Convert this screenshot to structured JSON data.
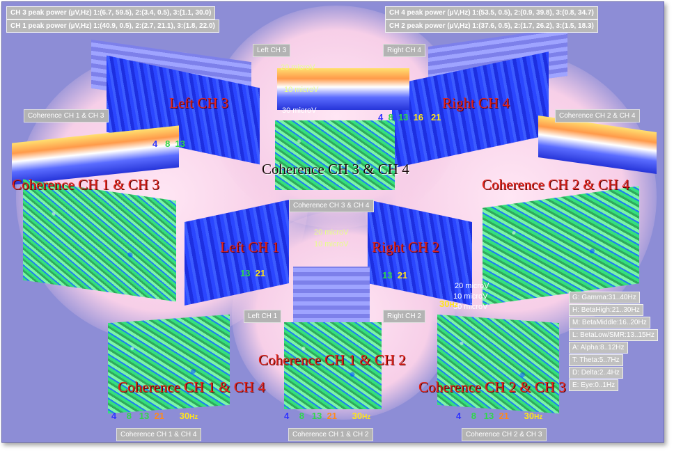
{
  "peak_power": {
    "ch3": "CH 3 peak power (µV,Hz) 1:(6.7, 59.5), 2:(3.4, 0.5), 3:(1.1, 30.0)",
    "ch1": "CH 1 peak power (µV,Hz) 1:(40.9, 0.5), 2:(2.7, 21.1), 3:(1.8, 22.0)",
    "ch4": "CH 4 peak power (µV,Hz) 1:(53.5, 0.5), 2:(0.9, 39.8), 3:(0.8, 34.7)",
    "ch2": "CH 2 peak power (µV,Hz) 1:(37.6, 0.5), 2:(1.7, 26.2), 3:(1.5, 18.3)"
  },
  "panel_labels": {
    "left_ch3": "Left CH 3",
    "right_ch4": "Right CH 4",
    "coh_13": "Coherence CH 1 & CH 3",
    "coh_24": "Coherence CH 2 & CH 4",
    "coh_34": "Coherence CH 3 & CH 4",
    "left_ch1": "Left CH 1",
    "right_ch2": "Right CH 2",
    "coh_14": "Coherence CH 1 & CH 4",
    "coh_12": "Coherence CH 1 & CH 2",
    "coh_23": "Coherence CH 2 & CH 3"
  },
  "big_titles": {
    "left_ch3": "Left CH 3",
    "right_ch4": "Right CH 4",
    "coh_34": "Coherence CH 3 & CH 4",
    "coh_13": "Coherence CH 1 & CH 3",
    "coh_24": "Coherence CH 2 & CH 4",
    "left_ch1": "Left CH 1",
    "right_ch2": "Right CH 2",
    "coh_12": "Coherence CH 1 & CH 2",
    "coh_14": "Coherence CH 1 & CH 4",
    "coh_23": "Coherence CH 2 & CH 3"
  },
  "microvolt": {
    "v20": "20 microV",
    "v10": "10 microV",
    "v30": "30 microV"
  },
  "axis_ticks": {
    "t4": "4",
    "t8": "8",
    "t13": "13",
    "t16": "16",
    "t21": "21",
    "t30": "30",
    "hz": "Hz",
    "pct": "%"
  },
  "legend": [
    "G: Gamma:31..40Hz",
    "H: BetaHigh:21..30Hz",
    "M: BetaMiddle:16..20Hz",
    "L: BetaLow/SMR:13..15Hz",
    "A: Alpha:8..12Hz",
    "T: Theta:5..7Hz",
    "D: Delta:2..4Hz",
    "E: Eye:0..1Hz"
  ],
  "colors": {
    "background": "#8d8dd6",
    "title_red": "#e3221a",
    "label_grey": "#b3b3b3"
  }
}
